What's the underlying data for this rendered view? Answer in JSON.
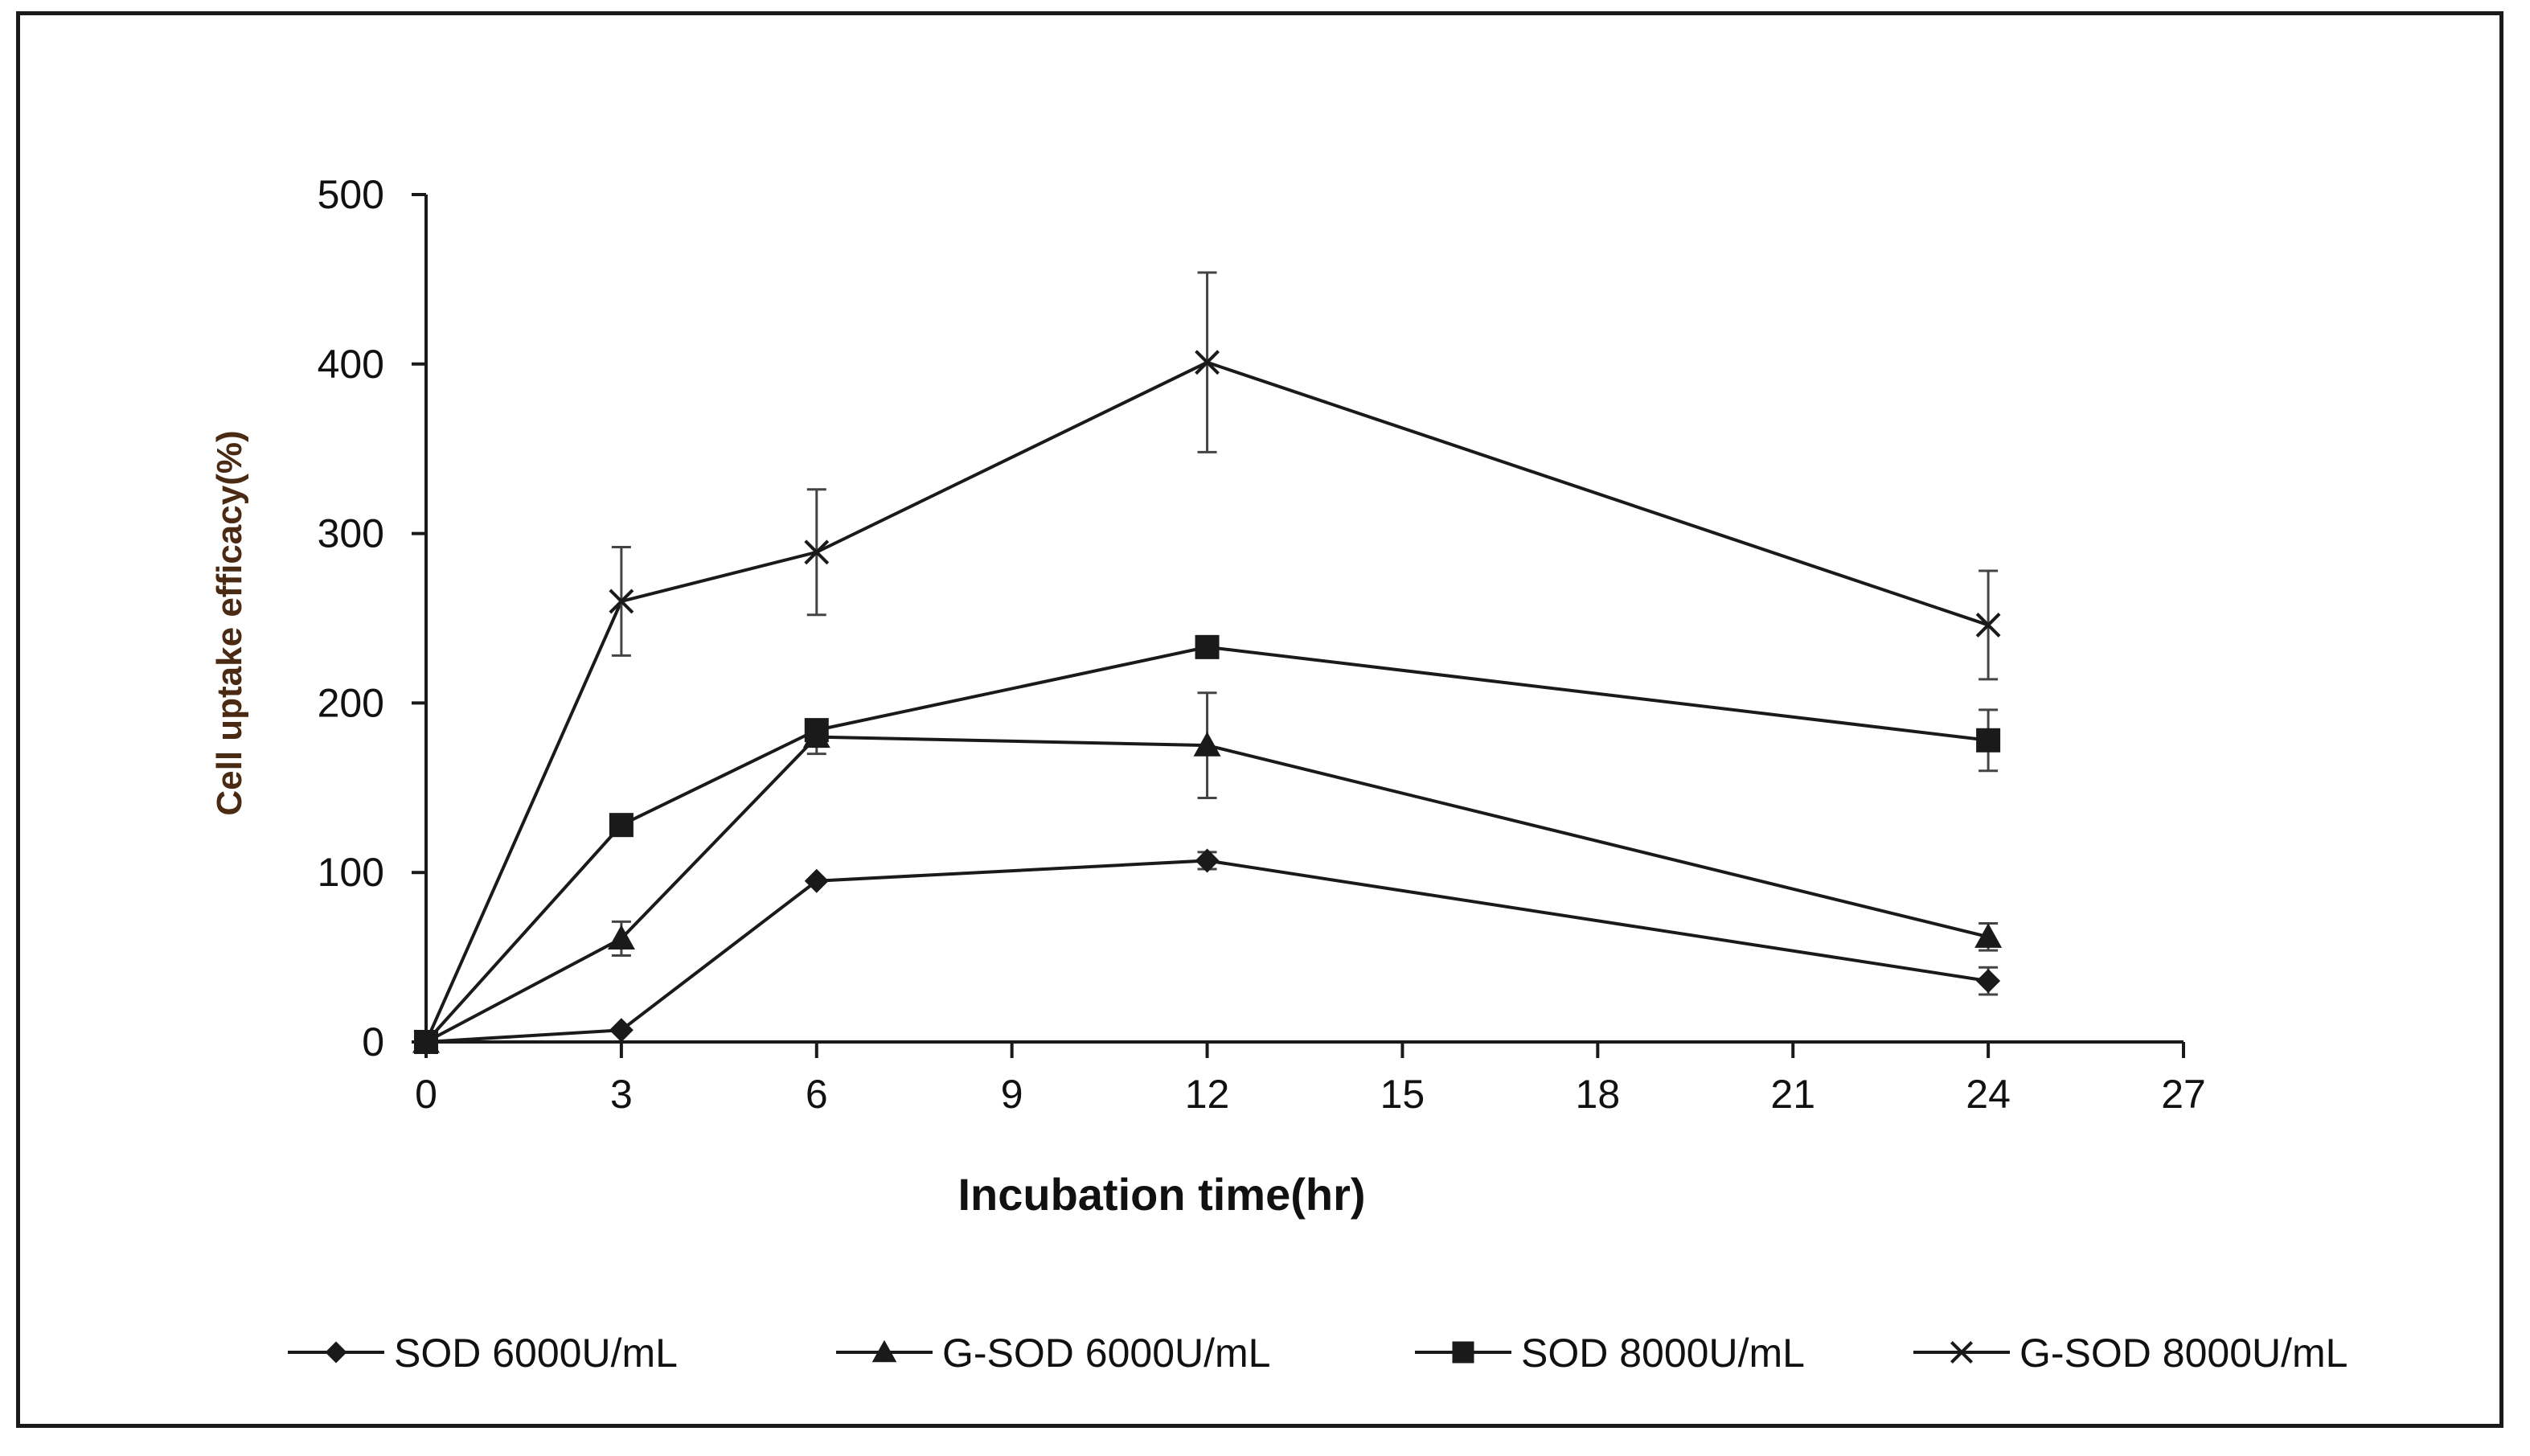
{
  "chart_data": {
    "type": "line",
    "title": "",
    "xlabel": "Incubation time(hr)",
    "ylabel": "Cell uptake efficacy(%)",
    "xlim": [
      0,
      27
    ],
    "ylim": [
      0,
      500
    ],
    "xticks": [
      0,
      3,
      6,
      9,
      12,
      15,
      18,
      21,
      24,
      27
    ],
    "yticks": [
      0,
      100,
      200,
      300,
      400,
      500
    ],
    "x": [
      0,
      3,
      6,
      12,
      24
    ],
    "grid": false,
    "legend_position": "bottom",
    "series": [
      {
        "name": "SOD 6000U/mL",
        "marker": "diamond",
        "values": [
          0,
          7,
          95,
          107,
          36
        ],
        "errors": [
          0,
          0,
          0,
          5,
          8
        ]
      },
      {
        "name": "G-SOD 6000U/mL",
        "marker": "triangle",
        "values": [
          0,
          61,
          180,
          175,
          62
        ],
        "errors": [
          0,
          10,
          10,
          31,
          8
        ]
      },
      {
        "name": "SOD 8000U/mL",
        "marker": "square",
        "values": [
          0,
          128,
          184,
          233,
          178
        ],
        "errors": [
          0,
          0,
          0,
          0,
          18
        ]
      },
      {
        "name": "G-SOD 8000U/mL",
        "marker": "x",
        "values": [
          0,
          260,
          289,
          401,
          246
        ],
        "errors": [
          0,
          32,
          37,
          53,
          32
        ]
      }
    ]
  },
  "colors": {
    "line": "#1a1a1a",
    "ylabel": "#4a2a12"
  }
}
